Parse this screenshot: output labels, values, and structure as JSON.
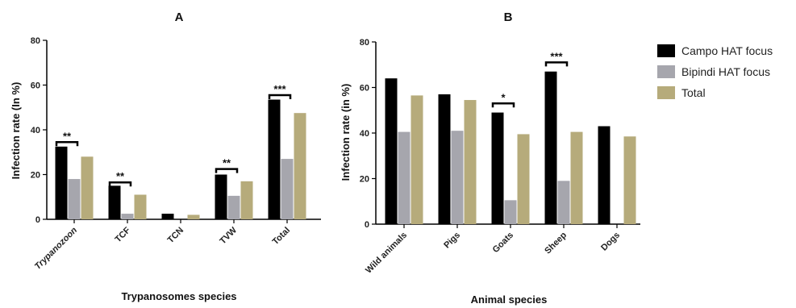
{
  "chart_data": [
    {
      "type": "bar",
      "panel_label": "A",
      "categories": [
        "Trypanozoon",
        "TCF",
        "TCN",
        "TVW",
        "Total"
      ],
      "category_italic": [
        true,
        false,
        false,
        false,
        false
      ],
      "series": [
        {
          "name": "Campo HAT focus",
          "values": [
            32.5,
            15,
            2.5,
            20,
            53.5
          ]
        },
        {
          "name": "Bipindi HAT focus",
          "values": [
            18,
            2.5,
            0,
            10.5,
            27
          ]
        },
        {
          "name": "Total",
          "values": [
            28,
            11,
            2,
            17,
            47.5
          ]
        }
      ],
      "ylabel": "Infection rate (In %)",
      "xlabel": "Trypanosomes species",
      "ylim": [
        0,
        80
      ],
      "yticks": [
        "0",
        "20",
        "40",
        "60",
        "80"
      ],
      "significance": [
        {
          "category_index": 0,
          "label": "**",
          "level": 34.5
        },
        {
          "category_index": 1,
          "label": "**",
          "level": 16.5
        },
        {
          "category_index": 3,
          "label": "**",
          "level": 22.5
        },
        {
          "category_index": 4,
          "label": "***",
          "level": 55.5
        }
      ]
    },
    {
      "type": "bar",
      "panel_label": "B",
      "categories": [
        "Wild animals",
        "Pigs",
        "Goats",
        "Sheep",
        "Dogs"
      ],
      "series": [
        {
          "name": "Campo HAT focus",
          "values": [
            64,
            57,
            49,
            67,
            43
          ]
        },
        {
          "name": "Bipindi HAT focus",
          "values": [
            40.5,
            41,
            10.5,
            19,
            0
          ]
        },
        {
          "name": "Total",
          "values": [
            56.5,
            54.5,
            39.5,
            40.5,
            38.5
          ]
        }
      ],
      "ylabel": "Infection rate (in %)",
      "xlabel": "Animal species",
      "ylim": [
        0,
        80
      ],
      "yticks": [
        "0",
        "20",
        "40",
        "60",
        "80"
      ],
      "significance": [
        {
          "category_index": 2,
          "label": "*",
          "level": 53
        },
        {
          "category_index": 3,
          "label": "***",
          "level": 71
        }
      ]
    }
  ],
  "legend": {
    "placement": "right",
    "items": [
      {
        "label": "Campo HAT focus",
        "color": "#000000"
      },
      {
        "label": "Bipindi HAT focus",
        "color": "#a6a6ad"
      },
      {
        "label": "Total",
        "color": "#b6ab7b"
      }
    ]
  },
  "colors": [
    "#000000",
    "#a6a6ad",
    "#b6ab7b"
  ]
}
